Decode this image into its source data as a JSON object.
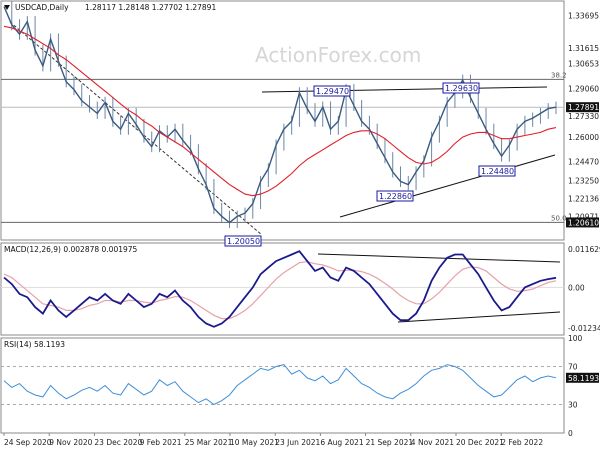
{
  "chart_data": {
    "type": "line",
    "watermark": "ActionForex.com",
    "price_panel": {
      "header": {
        "symbol": "USDCAD,Daily",
        "ohlc": "1.28117 1.28148 1.27702 1.27891"
      },
      "ylim": [
        1.195,
        1.346
      ],
      "yticks": [
        "1.33695",
        "1.31615",
        "1.30653",
        "1.29060",
        "1.27891",
        "1.27330",
        "1.26000",
        "1.24470",
        "1.23250",
        "1.22136",
        "1.20971",
        "1.20610"
      ],
      "ytick_values": [
        1.33695,
        1.31615,
        1.30653,
        1.2906,
        1.27891,
        1.2733,
        1.26,
        1.2447,
        1.2325,
        1.22136,
        1.20971,
        1.2061
      ],
      "highlight_ticks": [
        "1.27891",
        "1.20610"
      ],
      "close": [
        1.3425,
        1.331,
        1.325,
        1.333,
        1.315,
        1.305,
        1.322,
        1.308,
        1.295,
        1.29,
        1.283,
        1.279,
        1.275,
        1.282,
        1.27,
        1.265,
        1.275,
        1.268,
        1.26,
        1.254,
        1.264,
        1.26,
        1.265,
        1.258,
        1.252,
        1.24,
        1.23,
        1.215,
        1.21,
        1.206,
        1.21,
        1.212,
        1.218,
        1.232,
        1.24,
        1.255,
        1.265,
        1.27,
        1.288,
        1.278,
        1.27,
        1.279,
        1.265,
        1.27,
        1.29,
        1.28,
        1.27,
        1.265,
        1.256,
        1.247,
        1.238,
        1.232,
        1.23,
        1.238,
        1.245,
        1.26,
        1.27,
        1.282,
        1.288,
        1.296,
        1.285,
        1.275,
        1.265,
        1.256,
        1.248,
        1.255,
        1.265,
        1.27,
        1.272,
        1.275,
        1.278,
        1.2789
      ],
      "ma": [
        1.33,
        1.329,
        1.327,
        1.325,
        1.322,
        1.319,
        1.316,
        1.312,
        1.309,
        1.305,
        1.301,
        1.297,
        1.293,
        1.289,
        1.285,
        1.281,
        1.277,
        1.274,
        1.27,
        1.267,
        1.263,
        1.26,
        1.257,
        1.254,
        1.25,
        1.246,
        1.242,
        1.238,
        1.234,
        1.23,
        1.227,
        1.224,
        1.223,
        1.224,
        1.226,
        1.229,
        1.233,
        1.237,
        1.242,
        1.246,
        1.249,
        1.252,
        1.255,
        1.258,
        1.261,
        1.263,
        1.264,
        1.264,
        1.262,
        1.259,
        1.255,
        1.251,
        1.247,
        1.244,
        1.243,
        1.244,
        1.247,
        1.251,
        1.256,
        1.26,
        1.262,
        1.263,
        1.263,
        1.261,
        1.259,
        1.259,
        1.26,
        1.261,
        1.262,
        1.263,
        1.265,
        1.266
      ],
      "annotations": [
        "1.29470",
        "1.29630",
        "1.22860",
        "1.24480",
        "1.20050"
      ],
      "fib_labels": [
        "38.2",
        "50.0"
      ],
      "fib_levels": [
        1.2965,
        1.2061
      ]
    },
    "macd_panel": {
      "header": "MACD(12,26,9) 0.002878 0.001975",
      "ylim": [
        -0.0145,
        0.0135
      ],
      "yticks": [
        "0.011629",
        "0.00",
        "-0.012348"
      ],
      "ytick_values": [
        0.011629,
        0.0,
        -0.012348
      ],
      "macd": [
        0.003,
        0.001,
        -0.002,
        -0.003,
        -0.006,
        -0.008,
        -0.004,
        -0.007,
        -0.009,
        -0.007,
        -0.005,
        -0.003,
        -0.004,
        -0.002,
        -0.004,
        -0.005,
        -0.002,
        -0.004,
        -0.006,
        -0.005,
        -0.002,
        -0.003,
        -0.001,
        -0.004,
        -0.006,
        -0.009,
        -0.011,
        -0.012,
        -0.011,
        -0.009,
        -0.006,
        -0.003,
        0.0,
        0.004,
        0.006,
        0.008,
        0.009,
        0.01,
        0.011,
        0.008,
        0.005,
        0.006,
        0.003,
        0.002,
        0.006,
        0.005,
        0.003,
        0.001,
        -0.002,
        -0.005,
        -0.008,
        -0.01,
        -0.01,
        -0.008,
        -0.004,
        0.002,
        0.006,
        0.009,
        0.01,
        0.01,
        0.007,
        0.004,
        0.0,
        -0.004,
        -0.007,
        -0.006,
        -0.003,
        0.0,
        0.001,
        0.002,
        0.0025,
        0.0029
      ],
      "signal": [
        0.004,
        0.003,
        0.001,
        -0.001,
        -0.003,
        -0.005,
        -0.0055,
        -0.006,
        -0.007,
        -0.007,
        -0.0065,
        -0.0055,
        -0.005,
        -0.004,
        -0.004,
        -0.0045,
        -0.004,
        -0.004,
        -0.0045,
        -0.0048,
        -0.004,
        -0.0035,
        -0.0028,
        -0.003,
        -0.004,
        -0.0055,
        -0.007,
        -0.0085,
        -0.0095,
        -0.0095,
        -0.0085,
        -0.007,
        -0.005,
        -0.0025,
        0.0,
        0.0025,
        0.0045,
        0.006,
        0.0075,
        0.0078,
        0.0072,
        0.0068,
        0.006,
        0.005,
        0.0052,
        0.0052,
        0.0048,
        0.004,
        0.0028,
        0.0012,
        -0.0005,
        -0.0025,
        -0.004,
        -0.005,
        -0.005,
        -0.0035,
        -0.0015,
        0.001,
        0.0035,
        0.0055,
        0.0062,
        0.006,
        0.005,
        0.003,
        0.001,
        -0.0005,
        -0.0012,
        -0.001,
        -0.0005,
        0.0005,
        0.0015,
        0.002
      ]
    },
    "rsi_panel": {
      "header": "RSI(14) 58.1193",
      "ylim": [
        0,
        100
      ],
      "yticks": [
        "100",
        "70",
        "58.1193",
        "30",
        "0"
      ],
      "ytick_values": [
        100,
        70,
        58.1193,
        30,
        0
      ],
      "highlight_ticks": [
        "58.1193"
      ],
      "levels": [
        70,
        30
      ],
      "rsi": [
        55,
        48,
        52,
        44,
        40,
        38,
        50,
        42,
        36,
        40,
        45,
        48,
        44,
        50,
        42,
        40,
        52,
        46,
        40,
        44,
        56,
        50,
        54,
        44,
        38,
        32,
        36,
        30,
        34,
        40,
        50,
        56,
        62,
        68,
        66,
        70,
        72,
        62,
        66,
        58,
        55,
        60,
        52,
        56,
        68,
        60,
        52,
        48,
        42,
        38,
        36,
        42,
        46,
        52,
        60,
        66,
        68,
        72,
        70,
        66,
        58,
        50,
        44,
        38,
        40,
        48,
        56,
        60,
        54,
        58,
        60,
        58.1
      ]
    },
    "x_ticks": [
      "24 Sep 2020",
      "9 Nov 2020",
      "23 Dec 2020",
      "9 Feb 2021",
      "25 Mar 2021",
      "10 May 2021",
      "23 Jun 2021",
      "6 Aug 2021",
      "21 Sep 2021",
      "4 Nov 2021",
      "20 Dec 2021",
      "2 Feb 2022"
    ]
  }
}
